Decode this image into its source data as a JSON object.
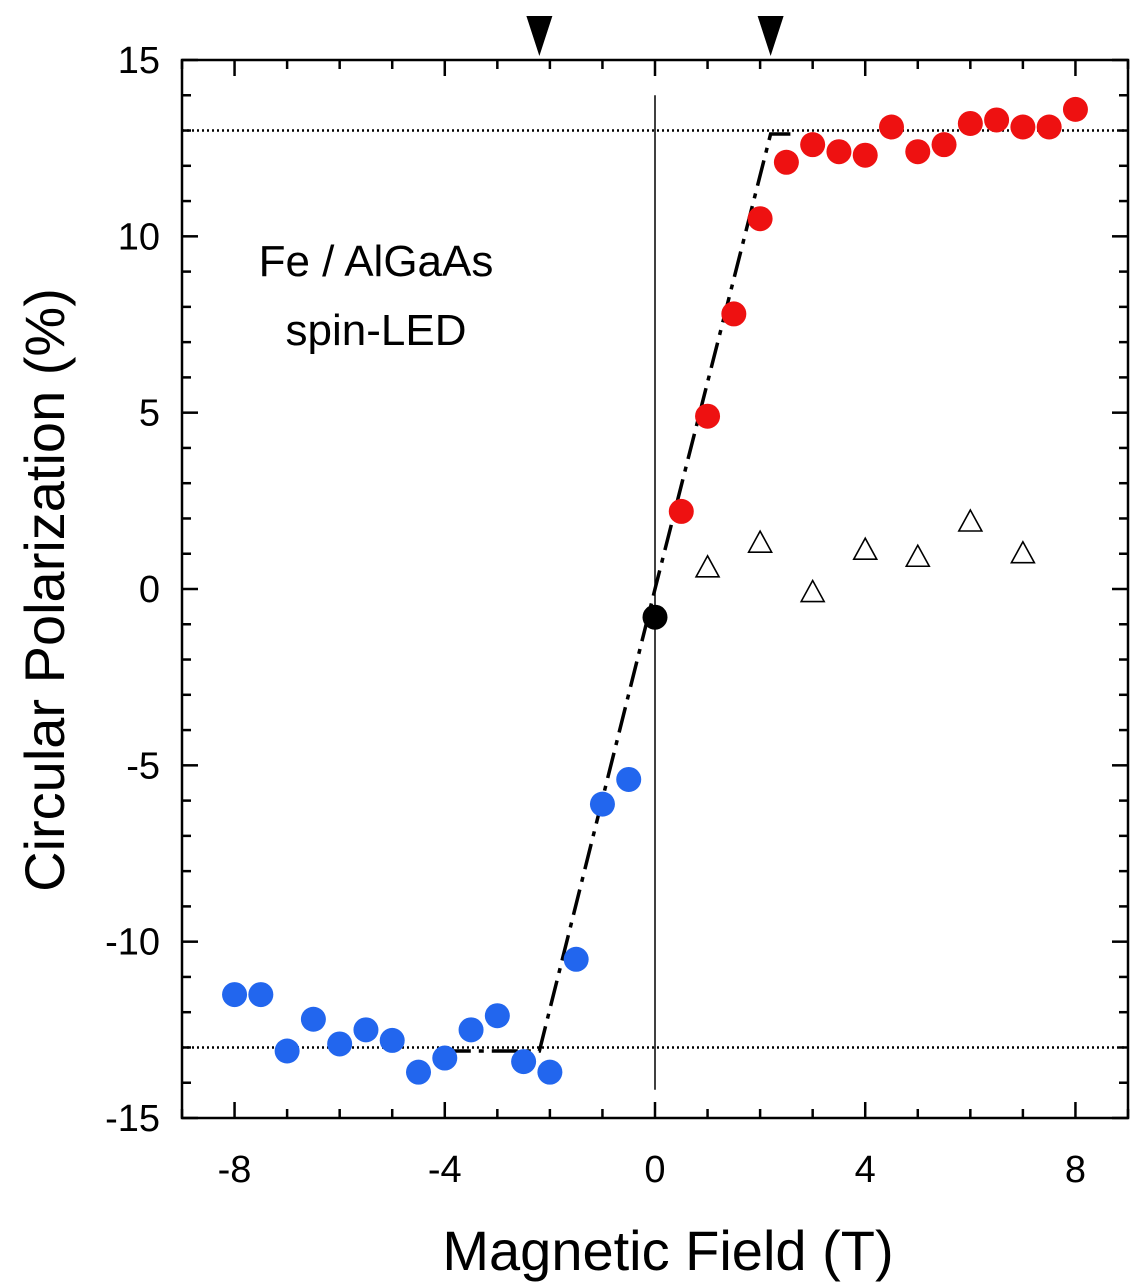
{
  "chart_data": {
    "type": "scatter",
    "title": "",
    "xlabel": "Magnetic Field (T)",
    "ylabel": "Circular Polarization (%)",
    "xlim": [
      -9,
      9
    ],
    "ylim": [
      -15,
      15
    ],
    "x_ticks": [
      -8,
      -4,
      0,
      4,
      8
    ],
    "y_ticks": [
      15,
      10,
      5,
      0,
      -5,
      -10,
      -15
    ],
    "grid": false,
    "annotation_lines": [
      "Fe / AlGaAs",
      "spin-LED"
    ],
    "colors": {
      "negative": "#2266ee",
      "positive": "#ee1111",
      "zero": "#000000",
      "reference": "#000000"
    },
    "series": [
      {
        "marker": "circle",
        "color": "#2266ee",
        "x": [
          -8,
          -7.5,
          -7,
          -6.5,
          -6,
          -5.5,
          -5,
          -4.5,
          -4,
          -3.5,
          -3,
          -2.5,
          -2,
          -1.5,
          -1,
          -0.5
        ],
        "y": [
          -11.5,
          -11.5,
          -13.1,
          -12.2,
          -12.9,
          -12.5,
          -12.8,
          -13.7,
          -13.3,
          -12.5,
          -12.1,
          -13.4,
          -13.7,
          -10.5,
          -6.1,
          -5.4
        ]
      },
      {
        "marker": "circle",
        "color": "#000000",
        "x": [
          0
        ],
        "y": [
          -0.8
        ]
      },
      {
        "marker": "circle",
        "color": "#ee1111",
        "x": [
          0.5,
          1,
          1.5,
          2,
          2.5,
          3,
          3.5,
          4,
          4.5,
          5,
          5.5,
          6,
          6.5,
          7,
          7.5,
          8
        ],
        "y": [
          2.2,
          4.9,
          7.8,
          10.5,
          12.1,
          12.6,
          12.4,
          12.3,
          13.1,
          12.4,
          12.6,
          13.2,
          13.3,
          13.1,
          13.1,
          13.6
        ]
      },
      {
        "marker": "triangle-open",
        "color": "#000000",
        "x": [
          1,
          2,
          3,
          4,
          5,
          6,
          7
        ],
        "y": [
          0.6,
          1.3,
          -0.1,
          1.1,
          0.9,
          1.9,
          1.0
        ]
      }
    ],
    "fit_line": {
      "style": "dash-dot",
      "x": [
        -4,
        -2.2,
        0,
        2.2,
        2.6
      ],
      "y": [
        -13.1,
        -13.1,
        0,
        12.9,
        12.9
      ]
    },
    "reference_lines_y": [
      13,
      -13
    ],
    "zero_line_x": 0,
    "markers_top_x": [
      -2.2,
      2.2
    ]
  }
}
